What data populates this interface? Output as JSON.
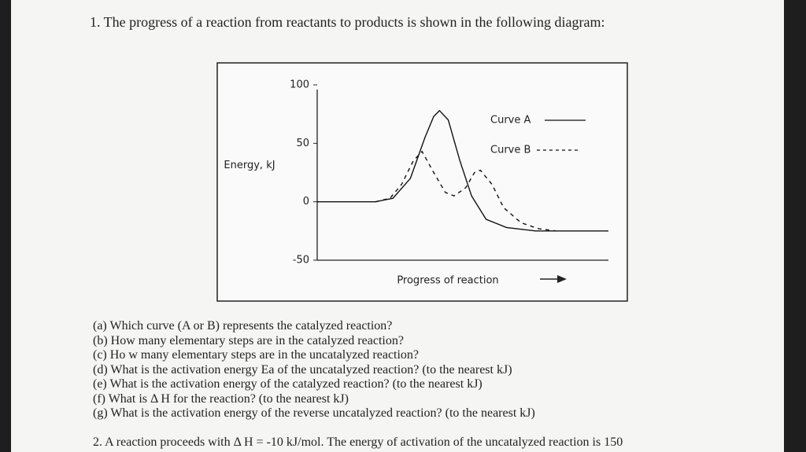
{
  "header": {
    "title": "1. The progress of a reaction from reactants to products is shown in the following diagram:"
  },
  "chart_data": {
    "type": "line",
    "y_label": "Energy, kJ",
    "x_label": "Progress of reaction",
    "xlim": [
      0,
      100
    ],
    "ylim": [
      -50,
      100
    ],
    "yticks": [
      100,
      50,
      0,
      -50
    ],
    "series": [
      {
        "name": "Curve A",
        "color": "#111111",
        "dash": false,
        "x": [
          0,
          20,
          26,
          32,
          37,
          40,
          42,
          45,
          49,
          53,
          58,
          65,
          75,
          100
        ],
        "values": [
          0,
          0,
          3,
          20,
          55,
          73,
          78,
          70,
          35,
          5,
          -15,
          -22,
          -25,
          -25
        ]
      },
      {
        "name": "Curve B",
        "color": "#111111",
        "dash": true,
        "x": [
          20,
          25,
          29,
          33,
          36,
          40,
          44,
          47,
          51,
          54,
          56,
          60,
          64,
          70,
          76,
          82
        ],
        "values": [
          0,
          3,
          15,
          35,
          43,
          25,
          8,
          5,
          12,
          25,
          27,
          15,
          -5,
          -18,
          -23,
          -25
        ]
      }
    ]
  },
  "questions": [
    "(a) Which curve (A or B) represents the catalyzed reaction?",
    "(b) How many elementary steps are in the catalyzed reaction?",
    "(c) Ho w many elementary steps are in the uncatalyzed reaction?",
    "(d) What is the activation energy Ea of the uncatalyzed reaction? (to the nearest kJ)",
    "(e) What is the activation energy of the catalyzed reaction? (to the nearest kJ)",
    "(f) What is Δ  H for the reaction? (to the nearest kJ)",
    "(g) What is the activation energy of the reverse uncatalyzed reaction? (to the nearest kJ)"
  ],
  "footer": {
    "next": "2. A reaction proceeds with Δ H = -10 kJ/mol. The energy of activation of the uncatalyzed reaction is 150"
  }
}
